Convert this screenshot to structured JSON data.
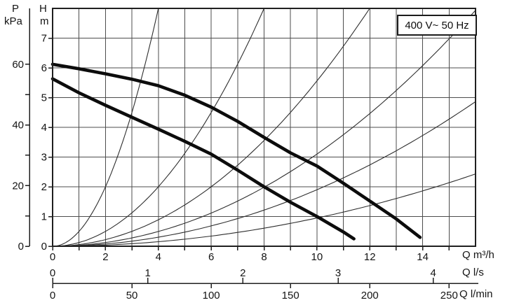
{
  "badge": {
    "label": "400 V~ 50 Hz"
  },
  "axis_titles": {
    "pressure_symbol": "P",
    "pressure_unit": "kPa",
    "head_symbol": "H",
    "head_unit": "m",
    "flow_m3h_label": "Q m³/h",
    "flow_ls_label": "Q l/s",
    "flow_lmin_label": "Q l/min"
  },
  "chart_data": {
    "type": "line",
    "title": "",
    "xlabel": "Q m³/h",
    "ylabel": "H m",
    "grid": true,
    "x_axes": [
      {
        "name": "flow-m3h",
        "unit": "m³/h",
        "range": [
          0,
          16
        ],
        "minor_tick_step": 1,
        "labeled_ticks": [
          0,
          2,
          4,
          6,
          8,
          10,
          12,
          14
        ]
      },
      {
        "name": "flow-ls",
        "unit": "l/s",
        "labeled_ticks": [
          0,
          1,
          2,
          3,
          4
        ],
        "m3h_per_unit": 3.6
      },
      {
        "name": "flow-lmin",
        "unit": "l/min",
        "labeled_ticks": [
          0,
          50,
          100,
          150,
          200,
          250
        ],
        "m3h_per_unit": 0.06
      }
    ],
    "y_axes": [
      {
        "name": "head",
        "unit": "m",
        "range": [
          0,
          8
        ],
        "ticks": [
          0,
          1,
          2,
          3,
          4,
          5,
          6,
          7
        ],
        "labeled_ticks": [
          0,
          1,
          2,
          3,
          4,
          5,
          6,
          7
        ]
      },
      {
        "name": "pressure",
        "unit": "kPa",
        "ticks": [
          0,
          10,
          20,
          30,
          40,
          50,
          60
        ],
        "labeled_ticks": [
          0,
          20,
          40,
          60
        ],
        "kpa_per_m_head": 9.80665
      }
    ],
    "series": [
      {
        "name": "pump-curve-high-speed",
        "style": "pump",
        "points": [
          [
            0,
            6.12
          ],
          [
            1,
            5.97
          ],
          [
            2,
            5.8
          ],
          [
            3,
            5.62
          ],
          [
            4,
            5.4
          ],
          [
            5,
            5.08
          ],
          [
            6,
            4.68
          ],
          [
            7,
            4.2
          ],
          [
            8,
            3.66
          ],
          [
            9,
            3.14
          ],
          [
            10,
            2.7
          ],
          [
            11,
            2.12
          ],
          [
            12,
            1.52
          ],
          [
            13,
            0.92
          ],
          [
            13.9,
            0.3
          ]
        ]
      },
      {
        "name": "pump-curve-low-speed",
        "style": "pump",
        "points": [
          [
            0,
            5.63
          ],
          [
            1,
            5.16
          ],
          [
            2,
            4.74
          ],
          [
            3,
            4.34
          ],
          [
            4,
            3.94
          ],
          [
            5,
            3.53
          ],
          [
            6,
            3.1
          ],
          [
            7,
            2.56
          ],
          [
            8,
            2.0
          ],
          [
            9,
            1.48
          ],
          [
            10,
            1.0
          ],
          [
            11,
            0.48
          ],
          [
            11.4,
            0.25
          ]
        ]
      },
      {
        "name": "system-curve-1",
        "style": "system",
        "equation": "H = k · Q²",
        "k": 0.5
      },
      {
        "name": "system-curve-2",
        "style": "system",
        "equation": "H = k · Q²",
        "k": 0.125
      },
      {
        "name": "system-curve-3",
        "style": "system",
        "equation": "H = k · Q²",
        "k": 0.0556
      },
      {
        "name": "system-curve-4",
        "style": "system",
        "equation": "H = k · Q²",
        "k": 0.031
      },
      {
        "name": "system-curve-5",
        "style": "system",
        "equation": "H = k · Q²",
        "k": 0.019
      },
      {
        "name": "system-curve-6",
        "style": "system",
        "equation": "H = k · Q²",
        "k": 0.0095
      }
    ],
    "colors": {
      "grid": "#4d4d4d",
      "border": "#1f1f1f",
      "pump_curve": "#0c0c0c",
      "system_curve": "#2e2e2e",
      "text": "#141414"
    }
  }
}
